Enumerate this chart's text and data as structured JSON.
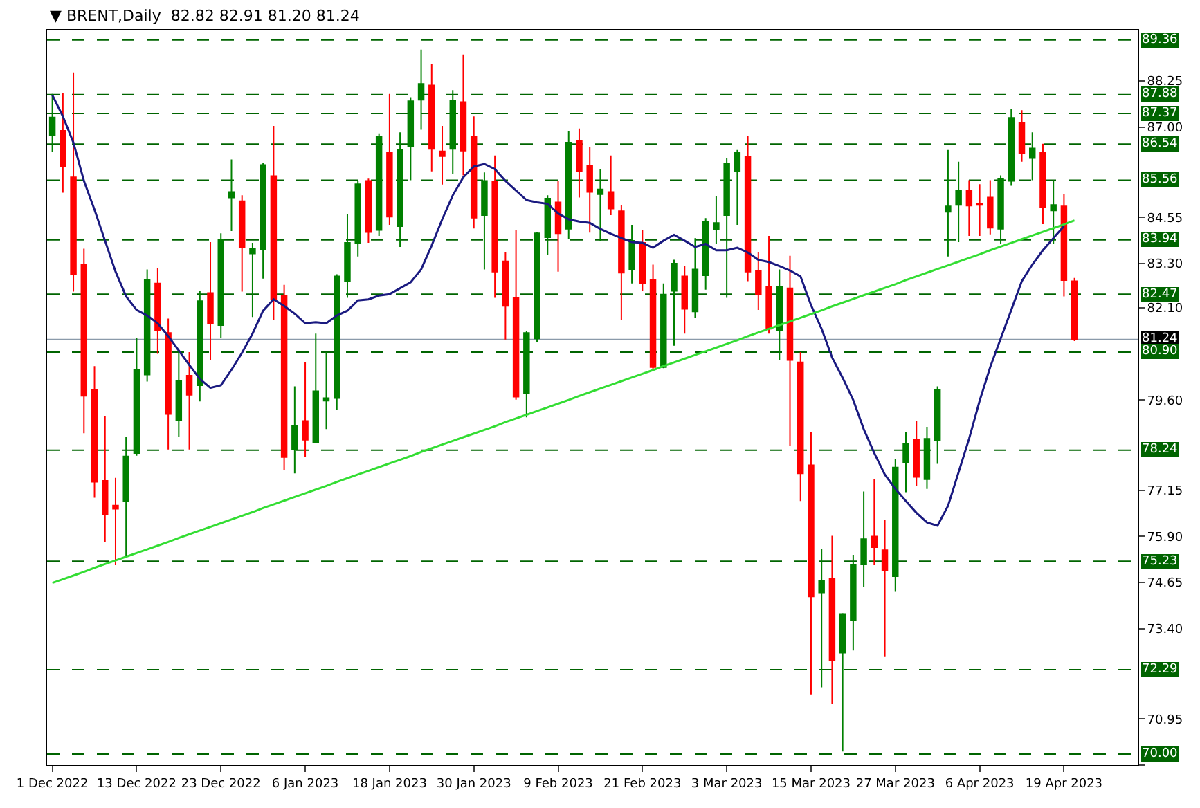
{
  "chart_data": {
    "type": "candlestick",
    "title": "▼ BRENT,Daily  82.82 82.91 81.20 81.24",
    "categories": [
      "1 Dec 2022",
      null,
      null,
      null,
      null,
      null,
      null,
      null,
      "13 Dec 2022",
      null,
      null,
      null,
      null,
      null,
      null,
      null,
      "23 Dec 2022",
      null,
      null,
      null,
      null,
      null,
      null,
      null,
      "6 Jan 2023",
      null,
      null,
      null,
      null,
      null,
      null,
      null,
      "18 Jan 2023",
      null,
      null,
      null,
      null,
      null,
      null,
      null,
      "30 Jan 2023",
      null,
      null,
      null,
      null,
      null,
      null,
      null,
      "9 Feb 2023",
      null,
      null,
      null,
      null,
      null,
      null,
      null,
      "21 Feb 2023",
      null,
      null,
      null,
      null,
      null,
      null,
      null,
      "3 Mar 2023",
      null,
      null,
      null,
      null,
      null,
      null,
      null,
      "15 Mar 2023",
      null,
      null,
      null,
      null,
      null,
      null,
      null,
      "27 Mar 2023",
      null,
      null,
      null,
      null,
      null,
      null,
      null,
      "6 Apr 2023",
      null,
      null,
      null,
      null,
      null,
      null,
      null,
      "19 Apr 2023",
      null
    ],
    "ohlc": [
      [
        86.77,
        87.9,
        86.32,
        87.26
      ],
      [
        86.9,
        87.93,
        85.22,
        85.93
      ],
      [
        85.64,
        88.48,
        82.54,
        83.01
      ],
      [
        83.27,
        83.7,
        78.7,
        79.71
      ],
      [
        79.87,
        80.52,
        76.95,
        77.38
      ],
      [
        77.41,
        79.16,
        75.76,
        76.5
      ],
      [
        76.74,
        77.49,
        75.12,
        76.65
      ],
      [
        76.86,
        78.6,
        75.31,
        78.07
      ],
      [
        78.16,
        81.29,
        78.09,
        80.42
      ],
      [
        80.29,
        83.14,
        80.1,
        82.85
      ],
      [
        82.76,
        83.18,
        80.85,
        81.5
      ],
      [
        81.42,
        81.81,
        78.26,
        79.22
      ],
      [
        79.04,
        80.94,
        78.61,
        80.13
      ],
      [
        80.26,
        80.9,
        78.26,
        79.74
      ],
      [
        80.0,
        82.56,
        79.56,
        82.28
      ],
      [
        82.5,
        83.88,
        80.68,
        81.68
      ],
      [
        81.63,
        84.12,
        81.29,
        83.95
      ],
      [
        85.09,
        86.12,
        84.18,
        85.24
      ],
      [
        84.99,
        85.15,
        82.54,
        83.75
      ],
      [
        83.57,
        83.86,
        81.85,
        83.7
      ],
      [
        83.69,
        86.02,
        82.89,
        85.97
      ],
      [
        85.67,
        87.03,
        81.76,
        82.33
      ],
      [
        82.43,
        82.72,
        77.7,
        78.05
      ],
      [
        78.26,
        79.97,
        77.61,
        78.9
      ],
      [
        79.03,
        80.62,
        78.05,
        78.52
      ],
      [
        78.46,
        81.4,
        78.46,
        79.84
      ],
      [
        79.58,
        80.9,
        78.81,
        79.65
      ],
      [
        79.65,
        83.01,
        79.32,
        82.95
      ],
      [
        82.82,
        84.63,
        82.37,
        83.86
      ],
      [
        83.86,
        85.54,
        83.49,
        85.45
      ],
      [
        85.54,
        85.6,
        83.86,
        84.15
      ],
      [
        84.21,
        86.83,
        84.05,
        86.73
      ],
      [
        86.32,
        87.9,
        84.35,
        84.57
      ],
      [
        84.31,
        86.86,
        83.75,
        86.38
      ],
      [
        86.47,
        87.81,
        85.56,
        87.7
      ],
      [
        87.74,
        89.1,
        86.93,
        88.17
      ],
      [
        88.13,
        88.71,
        85.8,
        86.41
      ],
      [
        86.34,
        87.03,
        85.44,
        86.21
      ],
      [
        86.41,
        88.0,
        85.73,
        87.72
      ],
      [
        87.68,
        88.97,
        85.69,
        86.36
      ],
      [
        86.74,
        87.29,
        84.25,
        84.54
      ],
      [
        84.61,
        85.77,
        83.14,
        85.54
      ],
      [
        85.51,
        86.23,
        82.37,
        83.08
      ],
      [
        83.36,
        83.6,
        81.24,
        82.15
      ],
      [
        82.37,
        84.22,
        79.61,
        79.69
      ],
      [
        79.78,
        81.46,
        79.13,
        81.42
      ],
      [
        81.27,
        84.15,
        81.16,
        84.12
      ],
      [
        84.01,
        85.15,
        83.53,
        85.06
      ],
      [
        84.96,
        85.54,
        83.08,
        84.12
      ],
      [
        84.24,
        86.9,
        83.96,
        86.58
      ],
      [
        86.62,
        86.96,
        85.09,
        85.8
      ],
      [
        85.95,
        86.45,
        84.14,
        85.24
      ],
      [
        85.18,
        85.86,
        83.92,
        85.31
      ],
      [
        85.24,
        86.23,
        84.61,
        84.79
      ],
      [
        84.72,
        84.89,
        81.78,
        83.05
      ],
      [
        83.14,
        84.35,
        82.76,
        83.92
      ],
      [
        83.86,
        84.22,
        82.56,
        82.76
      ],
      [
        82.85,
        83.27,
        80.42,
        80.49
      ],
      [
        80.49,
        82.76,
        80.46,
        82.46
      ],
      [
        82.56,
        83.4,
        81.07,
        83.3
      ],
      [
        82.95,
        83.24,
        81.4,
        82.07
      ],
      [
        82.0,
        83.99,
        81.82,
        83.14
      ],
      [
        82.98,
        84.53,
        82.59,
        84.44
      ],
      [
        84.22,
        85.13,
        83.83,
        84.4
      ],
      [
        84.61,
        86.15,
        82.37,
        86.02
      ],
      [
        85.8,
        86.38,
        84.35,
        86.32
      ],
      [
        86.19,
        86.77,
        82.82,
        83.08
      ],
      [
        83.11,
        83.62,
        82.04,
        82.46
      ],
      [
        82.67,
        84.05,
        81.4,
        81.53
      ],
      [
        81.5,
        83.14,
        80.68,
        82.67
      ],
      [
        82.63,
        83.51,
        78.35,
        80.68
      ],
      [
        80.62,
        80.9,
        76.86,
        77.61
      ],
      [
        77.83,
        78.74,
        71.62,
        74.27
      ],
      [
        74.38,
        75.57,
        71.81,
        74.69
      ],
      [
        74.76,
        75.92,
        71.36,
        72.55
      ],
      [
        72.75,
        73.82,
        70.07,
        73.8
      ],
      [
        73.63,
        75.4,
        72.81,
        75.14
      ],
      [
        75.14,
        77.12,
        74.53,
        75.83
      ],
      [
        75.9,
        77.45,
        75.12,
        75.61
      ],
      [
        75.53,
        76.35,
        72.65,
        74.99
      ],
      [
        74.82,
        78.0,
        74.4,
        77.77
      ],
      [
        77.9,
        78.74,
        77.1,
        78.42
      ],
      [
        78.52,
        79.03,
        77.28,
        77.51
      ],
      [
        77.45,
        78.87,
        77.19,
        78.55
      ],
      [
        78.51,
        79.97,
        77.87,
        79.87
      ],
      [
        84.7,
        86.38,
        83.49,
        84.85
      ],
      [
        84.89,
        86.06,
        83.88,
        85.28
      ],
      [
        85.28,
        85.56,
        84.05,
        84.87
      ],
      [
        84.91,
        85.45,
        84.05,
        84.89
      ],
      [
        85.09,
        85.56,
        84.09,
        84.27
      ],
      [
        84.24,
        85.69,
        83.83,
        85.6
      ],
      [
        85.54,
        87.48,
        85.41,
        87.25
      ],
      [
        87.12,
        87.46,
        86.06,
        86.29
      ],
      [
        86.16,
        86.86,
        85.56,
        86.42
      ],
      [
        86.32,
        86.55,
        84.37,
        84.83
      ],
      [
        84.74,
        85.56,
        83.83,
        84.89
      ],
      [
        84.85,
        85.18,
        82.41,
        82.85
      ],
      [
        82.82,
        82.91,
        81.2,
        81.24
      ]
    ],
    "colors": [
      "#008000",
      "#ff0000",
      "#ff0000",
      "#ff0000",
      "#ff0000",
      "#ff0000",
      "#ff0000",
      "#008000",
      "#008000",
      "#008000",
      "#ff0000",
      "#ff0000",
      "#008000",
      "#ff0000",
      "#008000",
      "#ff0000",
      "#008000",
      "#008000",
      "#ff0000",
      "#008000",
      "#008000",
      "#ff0000",
      "#ff0000",
      "#008000",
      "#ff0000",
      "#008000",
      "#008000",
      "#008000",
      "#008000",
      "#008000",
      "#ff0000",
      "#008000",
      "#ff0000",
      "#008000",
      "#008000",
      "#008000",
      "#ff0000",
      "#ff0000",
      "#008000",
      "#ff0000",
      "#ff0000",
      "#008000",
      "#ff0000",
      "#ff0000",
      "#ff0000",
      "#008000",
      "#008000",
      "#008000",
      "#ff0000",
      "#008000",
      "#ff0000",
      "#ff0000",
      "#008000",
      "#ff0000",
      "#ff0000",
      "#008000",
      "#ff0000",
      "#ff0000",
      "#008000",
      "#008000",
      "#ff0000",
      "#008000",
      "#008000",
      "#008000",
      "#008000",
      "#008000",
      "#ff0000",
      "#ff0000",
      "#ff0000",
      "#008000",
      "#ff0000",
      "#ff0000",
      "#ff0000",
      "#008000",
      "#ff0000",
      "#008000",
      "#008000",
      "#008000",
      "#ff0000",
      "#ff0000",
      "#008000",
      "#008000",
      "#ff0000",
      "#008000",
      "#008000",
      "#008000",
      "#008000",
      "#ff0000",
      "#ff0000",
      "#ff0000",
      "#008000",
      "#008000",
      "#ff0000",
      "#008000",
      "#ff0000",
      "#008000",
      "#ff0000",
      "#ff0000"
    ],
    "series": [
      {
        "type": "line",
        "color": "#1a1a80",
        "values": [
          87.87,
          87.29,
          86.58,
          85.54,
          84.76,
          83.92,
          83.08,
          82.41,
          82.04,
          81.89,
          81.68,
          81.33,
          80.94,
          80.55,
          80.17,
          79.93,
          80.0,
          80.42,
          80.88,
          81.4,
          82.02,
          82.33,
          82.15,
          81.94,
          81.68,
          81.71,
          81.68,
          81.89,
          82.02,
          82.3,
          82.33,
          82.43,
          82.47,
          82.63,
          82.79,
          83.14,
          83.79,
          84.5,
          85.15,
          85.64,
          85.93,
          86.0,
          85.86,
          85.54,
          85.28,
          85.02,
          84.96,
          84.92,
          84.66,
          84.5,
          84.44,
          84.4,
          84.24,
          84.11,
          83.99,
          83.88,
          83.86,
          83.73,
          83.92,
          84.08,
          83.92,
          83.75,
          83.83,
          83.66,
          83.66,
          83.73,
          83.6,
          83.4,
          83.34,
          83.23,
          83.11,
          82.95,
          82.17,
          81.53,
          80.75,
          80.2,
          79.6,
          78.81,
          78.16,
          77.58,
          77.19,
          76.86,
          76.54,
          76.28,
          76.19,
          76.73,
          77.64,
          78.55,
          79.58,
          80.49,
          81.27,
          82.04,
          82.82,
          83.27,
          83.66,
          83.99,
          84.31,
          null
        ]
      },
      {
        "type": "line",
        "color": "#33dd33",
        "values": [
          74.64,
          74.74,
          74.84,
          74.94,
          75.05,
          75.15,
          75.25,
          75.35,
          75.45,
          75.55,
          75.65,
          75.75,
          75.86,
          75.96,
          76.06,
          76.16,
          76.26,
          76.36,
          76.46,
          76.56,
          76.67,
          76.77,
          76.87,
          76.97,
          77.07,
          77.17,
          77.27,
          77.38,
          77.48,
          77.58,
          77.68,
          77.78,
          77.88,
          77.98,
          78.08,
          78.19,
          78.29,
          78.39,
          78.49,
          78.59,
          78.69,
          78.79,
          78.89,
          79.0,
          79.1,
          79.2,
          79.3,
          79.4,
          79.5,
          79.6,
          79.71,
          79.81,
          79.91,
          80.01,
          80.11,
          80.21,
          80.31,
          80.41,
          80.52,
          80.62,
          80.72,
          80.82,
          80.92,
          81.02,
          81.12,
          81.22,
          81.33,
          81.43,
          81.53,
          81.63,
          81.73,
          81.83,
          81.93,
          82.03,
          82.14,
          82.24,
          82.34,
          82.44,
          82.54,
          82.64,
          82.74,
          82.85,
          82.95,
          83.05,
          83.15,
          83.25,
          83.35,
          83.45,
          83.55,
          83.66,
          83.76,
          83.86,
          83.96,
          84.06,
          84.16,
          84.26,
          84.36,
          84.47
        ]
      }
    ],
    "ylim": [
      69.7,
      89.62
    ],
    "yticks": [
      {
        "value": 88.25,
        "label": "88.25"
      },
      {
        "value": 87.0,
        "label": "87.00"
      },
      {
        "value": 84.55,
        "label": "84.55"
      },
      {
        "value": 83.3,
        "label": "83.30"
      },
      {
        "value": 82.1,
        "label": "82.10"
      },
      {
        "value": 79.6,
        "label": "79.60"
      },
      {
        "value": 77.15,
        "label": "77.15"
      },
      {
        "value": 75.9,
        "label": "75.90"
      },
      {
        "value": 74.65,
        "label": "74.65"
      },
      {
        "value": 73.4,
        "label": "73.40"
      },
      {
        "value": 70.95,
        "label": "70.95"
      },
      {
        "value": 69.7,
        "label": null
      }
    ],
    "ref_lines": [
      {
        "axis": "y",
        "value": 89.36,
        "label": "89.36",
        "color": "#006400",
        "line_style": "dashed"
      },
      {
        "axis": "y",
        "value": 87.88,
        "label": "87.88",
        "color": "#006400",
        "line_style": "dashed"
      },
      {
        "axis": "y",
        "value": 87.37,
        "label": "87.37",
        "color": "#006400",
        "line_style": "dashed"
      },
      {
        "axis": "y",
        "value": 86.54,
        "label": "86.54",
        "color": "#006400",
        "line_style": "dashed"
      },
      {
        "axis": "y",
        "value": 85.56,
        "label": "85.56",
        "color": "#006400",
        "line_style": "dashed"
      },
      {
        "axis": "y",
        "value": 83.94,
        "label": "83.94",
        "color": "#006400",
        "line_style": "dashed"
      },
      {
        "axis": "y",
        "value": 82.47,
        "label": "82.47",
        "color": "#006400",
        "line_style": "dashed"
      },
      {
        "axis": "y",
        "value": 81.24,
        "label": "81.24",
        "color": "#8a9aaa",
        "line_style": "solid"
      },
      {
        "axis": "y",
        "value": 80.9,
        "label": "80.90",
        "color": "#006400",
        "line_style": "dashed"
      },
      {
        "axis": "y",
        "value": 78.24,
        "label": "78.24",
        "color": "#006400",
        "line_style": "dashed"
      },
      {
        "axis": "y",
        "value": 75.23,
        "label": "75.23",
        "color": "#006400",
        "line_style": "dashed"
      },
      {
        "axis": "y",
        "value": 72.29,
        "label": "72.29",
        "color": "#006400",
        "line_style": "dashed"
      },
      {
        "axis": "y",
        "value": 70.0,
        "label": "70.00",
        "color": "#006400",
        "line_style": "dashed"
      }
    ]
  }
}
